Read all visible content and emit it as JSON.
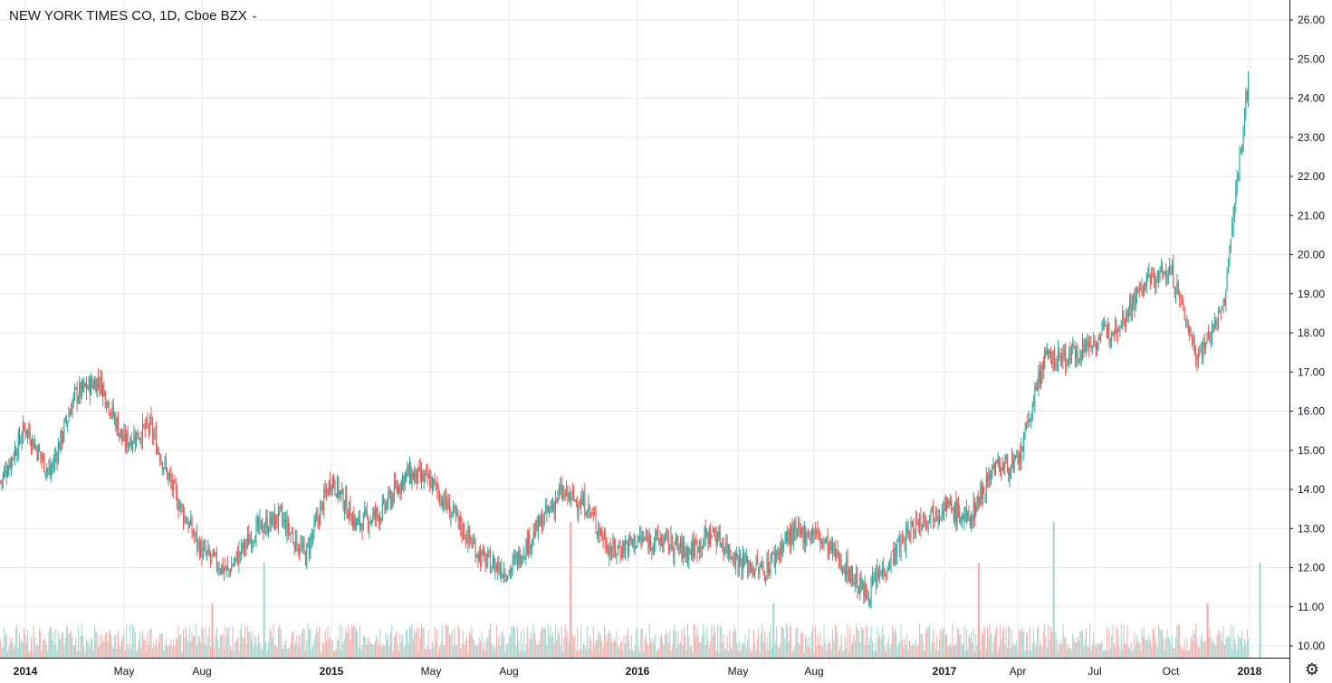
{
  "legend": {
    "symbol_title": "NEW YORK TIMES CO, 1D, Cboe BZX"
  },
  "colors": {
    "up": "#26a69a",
    "down": "#ef5350",
    "volume_up": "#9fd6cf",
    "volume_down": "#f5a9a7",
    "grid": "#e6eaef",
    "axis": "#131722"
  },
  "icons": {
    "legend_caret": "chevron-down-icon",
    "settings": "settings-gear-icon"
  },
  "chart_data": {
    "type": "candlestick",
    "interval": "1D",
    "exchange": "Cboe BZX",
    "title": "NEW YORK TIMES CO, 1D, Cboe BZX",
    "xlabel": "",
    "ylabel": "",
    "ylim": [
      9.75,
      26.25
    ],
    "grid": true,
    "x_ticks": [
      "2014",
      "May",
      "Aug",
      "2015",
      "May",
      "Aug",
      "2016",
      "May",
      "Aug",
      "2017",
      "Apr",
      "Jul",
      "Oct",
      "2018"
    ],
    "x_tick_dates": [
      "2014-01",
      "2014-05",
      "2014-08",
      "2015-01",
      "2015-05",
      "2015-08",
      "2016-01",
      "2016-05",
      "2016-08",
      "2017-01",
      "2017-04",
      "2017-07",
      "2017-10",
      "2018-01"
    ],
    "y_ticks": [
      "26.00",
      "25.00",
      "24.00",
      "23.00",
      "22.00",
      "21.00",
      "20.00",
      "19.00",
      "18.00",
      "17.00",
      "16.00",
      "15.00",
      "14.00",
      "13.00",
      "12.00",
      "11.00",
      "10.00"
    ],
    "y_tick_values": [
      26,
      25,
      24,
      23,
      22,
      21,
      20,
      19,
      18,
      17,
      16,
      15,
      14,
      13,
      12,
      11,
      10
    ],
    "date_range": [
      "2013-12",
      "2018-01"
    ],
    "series": [
      {
        "kind": "price_close_approx",
        "dates": [
          "2013-12",
          "2014-01",
          "2014-02",
          "2014-03",
          "2014-04",
          "2014-05",
          "2014-06",
          "2014-07",
          "2014-08",
          "2014-09",
          "2014-10",
          "2014-11",
          "2014-12",
          "2015-01",
          "2015-02",
          "2015-03",
          "2015-04",
          "2015-05",
          "2015-06",
          "2015-07",
          "2015-08",
          "2015-09",
          "2015-10",
          "2015-11",
          "2015-12",
          "2016-01",
          "2016-02",
          "2016-03",
          "2016-04",
          "2016-05",
          "2016-06",
          "2016-07",
          "2016-08",
          "2016-09",
          "2016-10",
          "2016-11",
          "2016-12",
          "2017-01",
          "2017-02",
          "2017-03",
          "2017-04",
          "2017-05",
          "2017-06",
          "2017-07",
          "2017-08",
          "2017-09",
          "2017-10",
          "2017-11",
          "2017-12",
          "2018-01"
        ],
        "values": [
          14.2,
          15.6,
          14.4,
          16.4,
          16.8,
          15.2,
          15.6,
          13.8,
          12.4,
          11.9,
          12.9,
          13.3,
          12.3,
          14.3,
          13.1,
          13.4,
          14.4,
          14.2,
          13.2,
          12.2,
          11.9,
          12.9,
          13.9,
          13.6,
          12.4,
          12.7,
          12.7,
          12.4,
          12.9,
          12.2,
          11.9,
          12.8,
          12.9,
          12.2,
          11.3,
          12.3,
          13.2,
          13.6,
          13.2,
          14.6,
          14.6,
          17.3,
          17.4,
          17.8,
          18.3,
          19.3,
          19.6,
          17.4,
          18.6,
          24.8
        ]
      }
    ],
    "volume": {
      "typical_range": "low",
      "notable_spikes_dates": [
        "2014-08",
        "2014-10",
        "2015-10",
        "2016-06",
        "2017-02",
        "2017-05",
        "2017-11",
        "2018-01"
      ]
    }
  }
}
